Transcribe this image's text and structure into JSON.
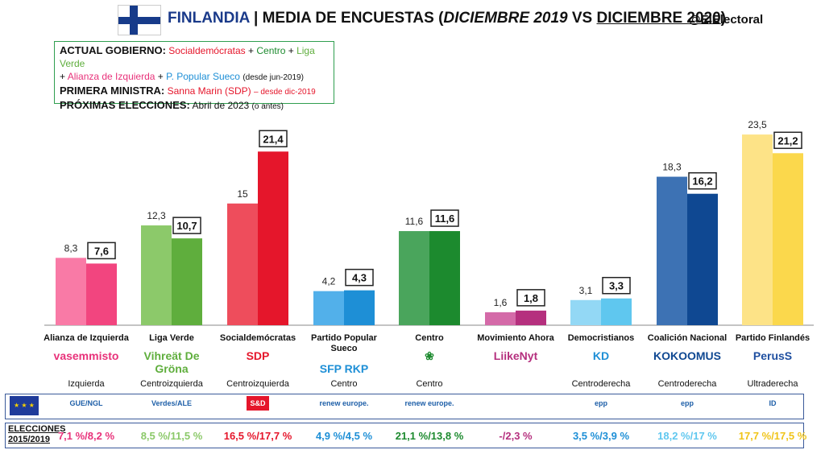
{
  "header": {
    "country": "FINLANDIA",
    "separator": "|",
    "title_a": "MEDIA DE ENCUESTAS (",
    "title_b": "DICIEMBRE 2019",
    "title_c": " VS ",
    "title_d": "DICIEMBRE 2020",
    "title_e": ")",
    "handle": "@ElElectoral"
  },
  "info": {
    "gov_key": "ACTUAL GOBIERNO:",
    "gov_p1": "Socialdemócratas",
    "gov_p2": "Centro",
    "gov_p3": "Liga Verde",
    "gov_p4": "Alianza de Izquierda",
    "gov_p5": "P. Popular Sueco",
    "gov_since": "(desde jun-2019)",
    "pm_key": "PRIMERA MINISTRA:",
    "pm_val": "Sanna Marin (SDP)",
    "pm_since": "– desde dic-2019",
    "next_key": "PRÓXIMAS ELECCIONES:",
    "next_val": "Abril de 2023",
    "next_note": "(o antes)"
  },
  "chart_data": {
    "type": "bar",
    "categories": [
      "Alianza de Izquierda",
      "Liga Verde",
      "Socialdemócratas",
      "Partido Popular Sueco",
      "Centro",
      "Movimiento Ahora",
      "Democristianos",
      "Coalición Nacional",
      "Partido Finlandés"
    ],
    "series": [
      {
        "values": [
          8.3,
          12.3,
          15,
          4.2,
          11.6,
          1.6,
          3.1,
          18.3,
          23.5
        ]
      },
      {
        "values": [
          7.6,
          10.7,
          21.4,
          4.3,
          11.6,
          1.8,
          3.3,
          16.2,
          21.2
        ]
      }
    ],
    "labels_2019": [
      "8,3",
      "12,3",
      "15",
      "4,2",
      "11,6",
      "1,6",
      "3,1",
      "18,3",
      "23,5"
    ],
    "labels_2020": [
      "7,6",
      "10,7",
      "21,4",
      "4,3",
      "11,6",
      "1,8",
      "3,3",
      "16,2",
      "21,2"
    ],
    "colors_2019": [
      "#f97aa6",
      "#8cc96a",
      "#ee4d5c",
      "#52b0ea",
      "#4aa55c",
      "#d46aa8",
      "#93d8f5",
      "#3d72b4",
      "#fde387"
    ],
    "colors_2020": [
      "#f2457f",
      "#5fae3d",
      "#e5162b",
      "#1e8fd6",
      "#1c8a2e",
      "#b5307e",
      "#5fc7ef",
      "#0f4892",
      "#fbd84c"
    ],
    "ylim": [
      0,
      25
    ]
  },
  "parties": [
    {
      "name": "Alianza de Izquierda",
      "logo": "vasemmisto",
      "ideology": "Izquierda",
      "logo_color": "#e8327a"
    },
    {
      "name": "Liga Verde",
      "logo": "Vihreät De Gröna",
      "ideology": "Centroizquierda",
      "logo_color": "#5fae3d"
    },
    {
      "name": "Socialdemócratas",
      "logo": "SDP",
      "ideology": "Centroizquierda",
      "logo_color": "#e5162b"
    },
    {
      "name": "Partido Popular Sueco",
      "logo": "SFP RKP",
      "ideology": "Centro",
      "logo_color": "#1e8fd6"
    },
    {
      "name": "Centro",
      "logo": "❀",
      "ideology": "Centro",
      "logo_color": "#1c8a2e"
    },
    {
      "name": "Movimiento Ahora",
      "logo": "LiikeNyt",
      "ideology": "",
      "logo_color": "#b5307e"
    },
    {
      "name": "Democristianos",
      "logo": "KD",
      "ideology": "Centroderecha",
      "logo_color": "#1e8fd6"
    },
    {
      "name": "Coalición Nacional",
      "logo": "KOKOOMUS",
      "ideology": "Centroderecha",
      "logo_color": "#0f4892"
    },
    {
      "name": "Partido Finlandés",
      "logo": "PerusS",
      "ideology": "Ultraderecha",
      "logo_color": "#1f4fa0"
    }
  ],
  "eu_groups": [
    "GUE/NGL",
    "Verdes/ALE",
    "S&D",
    "renew europe.",
    "renew europe.",
    "",
    "epp",
    "epp",
    "ID"
  ],
  "elections": {
    "label": "ELECCIONES 2015/2019",
    "results": [
      "7,1 %/8,2 %",
      "8,5 %/11,5 %",
      "16,5 %/17,7 %",
      "4,9 %/4,5 %",
      "21,1 %/13,8 %",
      "-/2,3 %",
      "3,5 %/3,9 %",
      "18,2 %/17 %",
      "17,7 %/17,5 %"
    ],
    "colors": [
      "#e8327a",
      "#8cc96a",
      "#e5162b",
      "#1e8fd6",
      "#1c8a2e",
      "#b5307e",
      "#1e8fd6",
      "#5fc7ef",
      "#f0c419"
    ]
  }
}
